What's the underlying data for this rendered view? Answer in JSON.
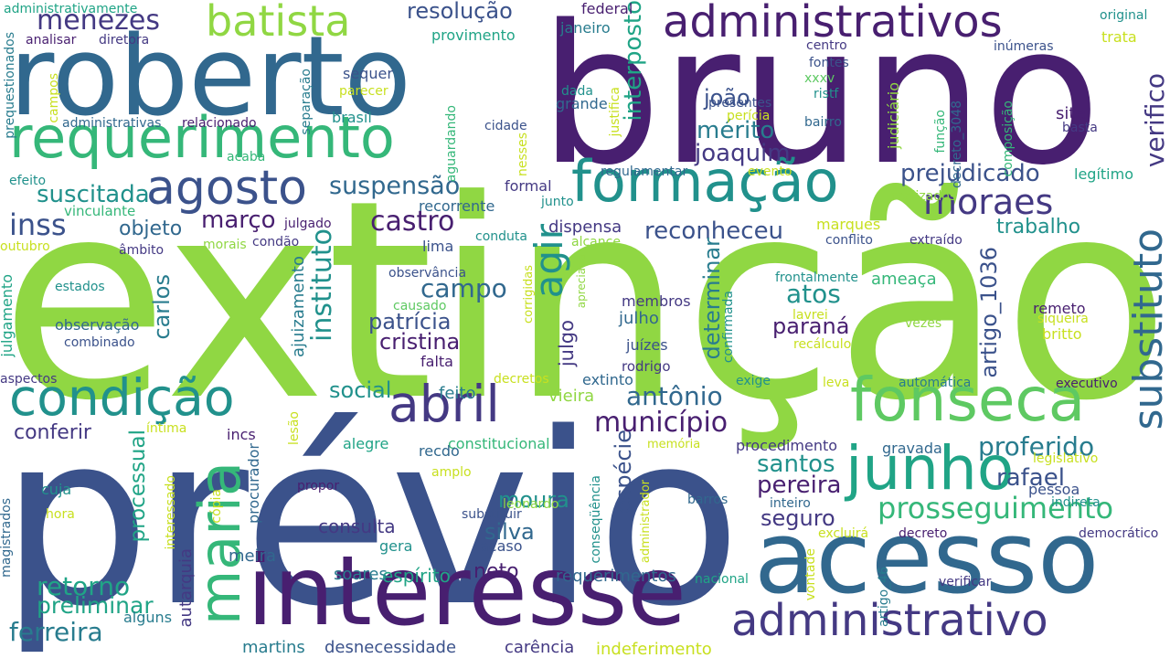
{
  "colors": {
    "background": "#ffffff",
    "palette": [
      "#440154",
      "#481f70",
      "#443983",
      "#3b528b",
      "#31688e",
      "#287c8e",
      "#21918c",
      "#20a486",
      "#35b779",
      "#5ec962",
      "#90d743",
      "#c8e020",
      "#fde725"
    ]
  },
  "words": [
    "extinção",
    "prévio",
    "bruno",
    "roberto",
    "acesso",
    "interesse",
    "requerimento",
    "formação",
    "fonseca",
    "junho",
    "administrativos",
    "administrativo",
    "condição",
    "abril",
    "agosto",
    "batista",
    "substituto",
    "maria",
    "prosseguimento",
    "moraes",
    "verifico",
    "agir",
    "município",
    "castro",
    "reconheceu",
    "atos",
    "antônio",
    "campo",
    "prejudicado",
    "instituto",
    "patrícia",
    "cristina",
    "suspensão",
    "suscitada",
    "inss",
    "menezes",
    "resolução",
    "processual",
    "retorno",
    "ferreira",
    "preliminar",
    "carlos",
    "espécie",
    "mérito",
    "joaquim",
    "joão",
    "março",
    "objeto",
    "paraná",
    "pereira",
    "moura",
    "silva",
    "santos",
    "proferido",
    "rafael",
    "trabalho",
    "determinar",
    "artigo_1036",
    "interposto",
    "social",
    "neto",
    "seguro",
    "consulta",
    "julgo",
    "conferir",
    "espírito",
    "requerimentos",
    "desnecessidade",
    "carência",
    "indeferimento",
    "martins",
    "soares",
    "meira",
    "autarquia",
    "alguns",
    "magistrados",
    "hora",
    "cópia",
    "procurador",
    "amplo",
    "interessado",
    "propor",
    "leonardo",
    "substituir",
    "acaso",
    "gera",
    "cuja",
    "vontade",
    "memória",
    "constitucional",
    "recdo",
    "alegre",
    "legislativo",
    "pessoa",
    "indireta",
    "democrático",
    "decreto",
    "excluirá",
    "inteiro",
    "verificar",
    "nacional",
    "barros",
    "artigo_46",
    "administrador",
    "conseqüência",
    "gravada",
    "procedimento",
    "feito",
    "vieira",
    "falta",
    "rodrigo",
    "extinto",
    "decretos",
    "exige",
    "leva",
    "executivo",
    "automática",
    "vezes",
    "confirmada",
    "recálculo",
    "siqueira",
    "britto",
    "remeto",
    "lavrei",
    "julho",
    "juízes",
    "membros",
    "frontalmente",
    "ameaça",
    "apreciada",
    "causado",
    "corrigidas",
    "observância",
    "ajuizamento",
    "observação",
    "combinado",
    "julgamento",
    "aspectos",
    "estados",
    "lesão",
    "íntima",
    "incs",
    "conflito",
    "extraído",
    "marques",
    "alcance",
    "conduta",
    "lima",
    "dispensa",
    "morais",
    "condão",
    "outubro",
    "âmbito",
    "julgado",
    "vinculante",
    "recorrente",
    "junto",
    "formal",
    "regulamentar",
    "evento",
    "realizados",
    "legítimo",
    "efeito",
    "acaba",
    "cidade",
    "nesses",
    "perícia",
    "bairro",
    "ristf",
    "xxxv",
    "presentes",
    "fontes",
    "centro",
    "site",
    "basta",
    "função",
    "decreto_3048",
    "composição",
    "judiciário",
    "inúmeras",
    "original",
    "trata",
    "federal",
    "janeiro",
    "provimento",
    "aguardando",
    "separação",
    "sequer",
    "parecer",
    "brasil",
    "relacionado",
    "administrativas",
    "campos",
    "prequestionados",
    "administrativamente",
    "analisar",
    "diretora",
    "dada",
    "grande",
    "justifica"
  ]
}
